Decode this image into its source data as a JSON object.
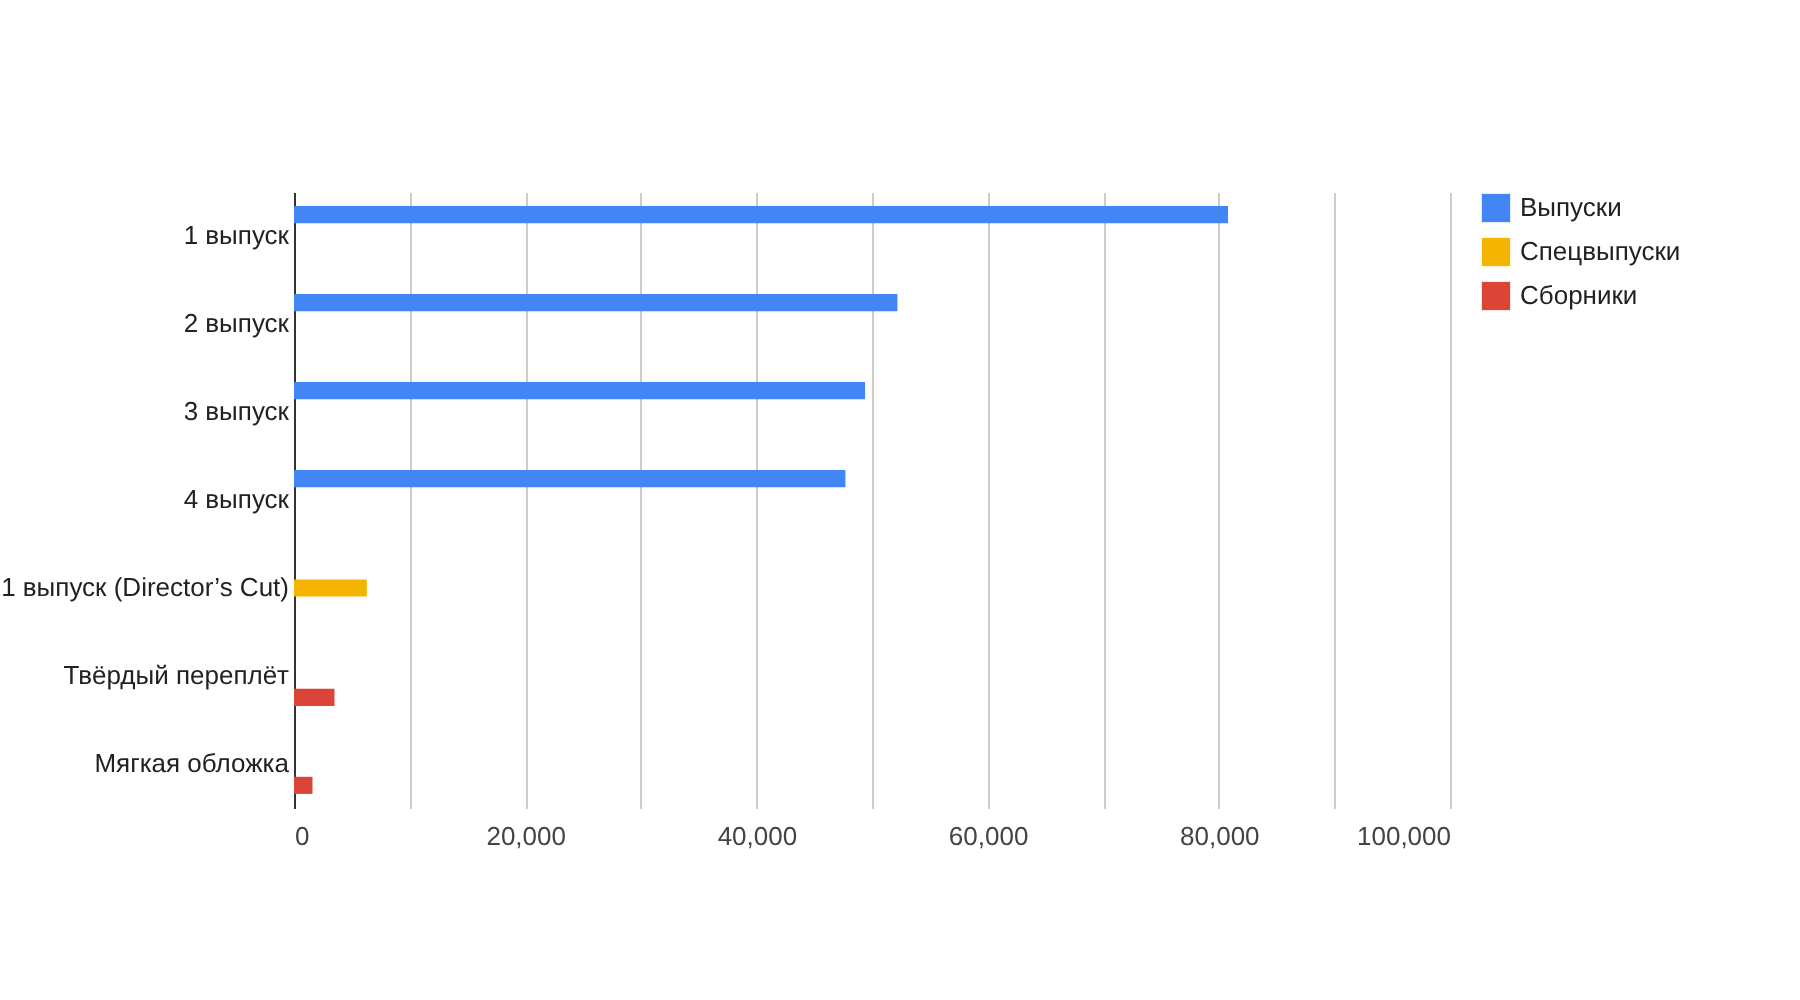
{
  "chart_data": {
    "type": "bar",
    "orientation": "horizontal",
    "categories": [
      "1 выпуск",
      "2 выпуск",
      "3 выпуск",
      "4 выпуск",
      "1 выпуск (Director’s Cut)",
      "Твёрдый переплёт",
      "Мягкая обложка"
    ],
    "series": [
      {
        "name": "Выпуски",
        "color": "#4285f4",
        "values": [
          80800,
          52200,
          49400,
          47700,
          null,
          null,
          null
        ]
      },
      {
        "name": "Спецвыпуски",
        "color": "#f4b400",
        "values": [
          null,
          null,
          null,
          null,
          6300,
          null,
          null
        ]
      },
      {
        "name": "Сборники",
        "color": "#db4437",
        "values": [
          null,
          null,
          null,
          null,
          null,
          3500,
          1600
        ]
      }
    ],
    "xlim": [
      0,
      100000
    ],
    "xticks": [
      {
        "value": 0,
        "label": "0"
      },
      {
        "value": 10000,
        "label": null
      },
      {
        "value": 20000,
        "label": "20,000"
      },
      {
        "value": 30000,
        "label": null
      },
      {
        "value": 40000,
        "label": "40,000"
      },
      {
        "value": 50000,
        "label": null
      },
      {
        "value": 60000,
        "label": "60,000"
      },
      {
        "value": 70000,
        "label": null
      },
      {
        "value": 80000,
        "label": "80,000"
      },
      {
        "value": 90000,
        "label": null
      },
      {
        "value": 100000,
        "label": "100,000"
      }
    ],
    "grid": "x",
    "legend": "top right"
  }
}
